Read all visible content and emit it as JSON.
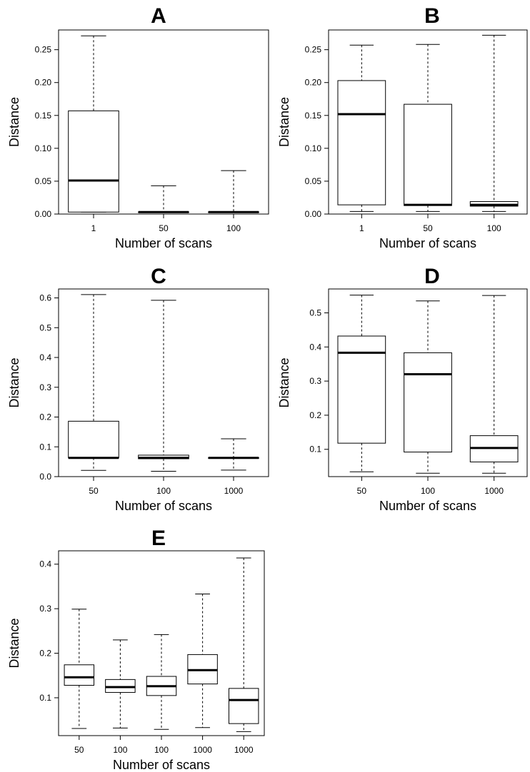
{
  "chart_data": [
    {
      "type": "box",
      "title": "A",
      "xlabel": "Number of scans",
      "ylabel": "Distance",
      "ylim": [
        0,
        0.28
      ],
      "yticks": [
        "0.00",
        "0.05",
        "0.10",
        "0.15",
        "0.20",
        "0.25"
      ],
      "categories": [
        "1",
        "50",
        "100"
      ],
      "boxes": [
        {
          "category": "1",
          "min": 0.003,
          "q1": 0.003,
          "median": 0.051,
          "q3": 0.157,
          "max": 0.271
        },
        {
          "category": "50",
          "min": 0.003,
          "q1": 0.003,
          "median": 0.003,
          "q3": 0.003,
          "max": 0.043
        },
        {
          "category": "100",
          "min": 0.003,
          "q1": 0.003,
          "median": 0.003,
          "q3": 0.003,
          "max": 0.066
        }
      ]
    },
    {
      "type": "box",
      "title": "B",
      "xlabel": "Number of scans",
      "ylabel": "Distance",
      "ylim": [
        0,
        0.28
      ],
      "yticks": [
        "0.00",
        "0.05",
        "0.10",
        "0.15",
        "0.20",
        "0.25"
      ],
      "categories": [
        "1",
        "50",
        "100"
      ],
      "boxes": [
        {
          "category": "1",
          "min": 0.004,
          "q1": 0.014,
          "median": 0.152,
          "q3": 0.203,
          "max": 0.257
        },
        {
          "category": "50",
          "min": 0.004,
          "q1": 0.013,
          "median": 0.014,
          "q3": 0.167,
          "max": 0.258
        },
        {
          "category": "100",
          "min": 0.004,
          "q1": 0.012,
          "median": 0.014,
          "q3": 0.019,
          "max": 0.272
        }
      ]
    },
    {
      "type": "box",
      "title": "C",
      "xlabel": "Number of scans",
      "ylabel": "Distance",
      "ylim": [
        0,
        0.63
      ],
      "yticks": [
        "0.0",
        "0.1",
        "0.2",
        "0.3",
        "0.4",
        "0.5",
        "0.6"
      ],
      "categories": [
        "50",
        "100",
        "1000"
      ],
      "boxes": [
        {
          "category": "50",
          "min": 0.021,
          "q1": 0.063,
          "median": 0.063,
          "q3": 0.186,
          "max": 0.611
        },
        {
          "category": "100",
          "min": 0.018,
          "q1": 0.06,
          "median": 0.063,
          "q3": 0.072,
          "max": 0.592
        },
        {
          "category": "1000",
          "min": 0.022,
          "q1": 0.063,
          "median": 0.063,
          "q3": 0.063,
          "max": 0.127
        }
      ]
    },
    {
      "type": "box",
      "title": "D",
      "xlabel": "Number of scans",
      "ylabel": "Distance",
      "ylim": [
        0.02,
        0.57
      ],
      "yticks": [
        "0.1",
        "0.2",
        "0.3",
        "0.4",
        "0.5"
      ],
      "categories": [
        "50",
        "100",
        "1000"
      ],
      "boxes": [
        {
          "category": "50",
          "min": 0.034,
          "q1": 0.118,
          "median": 0.383,
          "q3": 0.432,
          "max": 0.552
        },
        {
          "category": "100",
          "min": 0.03,
          "q1": 0.092,
          "median": 0.32,
          "q3": 0.383,
          "max": 0.535
        },
        {
          "category": "1000",
          "min": 0.03,
          "q1": 0.063,
          "median": 0.104,
          "q3": 0.14,
          "max": 0.551
        }
      ]
    },
    {
      "type": "box",
      "title": "E",
      "xlabel": "Number of scans",
      "ylabel": "Distance",
      "ylim": [
        0.015,
        0.43
      ],
      "yticks": [
        "0.1",
        "0.2",
        "0.3",
        "0.4"
      ],
      "categories": [
        "50",
        "100",
        "100",
        "1000",
        "1000"
      ],
      "boxes": [
        {
          "category": "50",
          "min": 0.031,
          "q1": 0.128,
          "median": 0.146,
          "q3": 0.174,
          "max": 0.299
        },
        {
          "category": "100",
          "min": 0.032,
          "q1": 0.112,
          "median": 0.124,
          "q3": 0.141,
          "max": 0.23
        },
        {
          "category": "100",
          "min": 0.029,
          "q1": 0.105,
          "median": 0.126,
          "q3": 0.148,
          "max": 0.242
        },
        {
          "category": "1000",
          "min": 0.033,
          "q1": 0.131,
          "median": 0.162,
          "q3": 0.197,
          "max": 0.333
        },
        {
          "category": "1000",
          "min": 0.024,
          "q1": 0.042,
          "median": 0.095,
          "q3": 0.121,
          "max": 0.414
        }
      ]
    }
  ]
}
